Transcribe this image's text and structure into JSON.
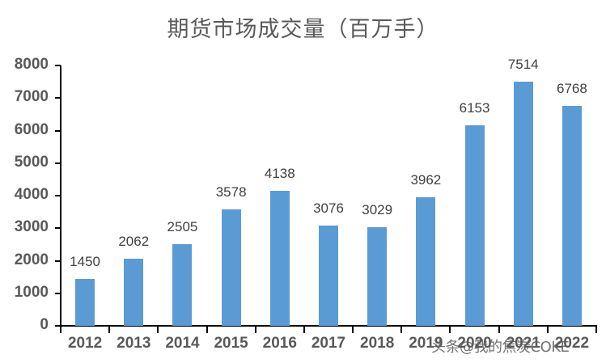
{
  "chart_data": {
    "type": "bar",
    "title": "期货市场成交量（百万手）",
    "xlabel": "",
    "ylabel": "",
    "categories": [
      "2012",
      "2013",
      "2014",
      "2015",
      "2016",
      "2017",
      "2018",
      "2019",
      "2020",
      "2021",
      "2022"
    ],
    "values": [
      1450,
      2062,
      2505,
      3578,
      4138,
      3076,
      3029,
      3962,
      6153,
      7514,
      6768
    ],
    "data_labels": [
      "1450",
      "2062",
      "2505",
      "3578",
      "4138",
      "3076",
      "3029",
      "3962",
      "6153",
      "7514",
      "6768"
    ],
    "ylim": [
      0,
      8000
    ],
    "yticks": [
      "0",
      "1000",
      "2000",
      "3000",
      "4000",
      "5000",
      "6000",
      "7000",
      "8000"
    ],
    "grid": false,
    "legend": null,
    "bar_color": "#5B9BD5"
  },
  "watermark": "头条@我的焦炭COKE"
}
